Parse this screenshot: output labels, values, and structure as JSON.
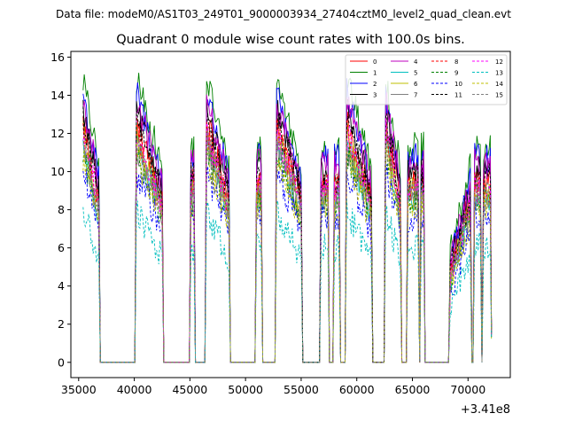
{
  "figure": {
    "suptitle": "Data file: modeM0/AS1T03_249T01_9000003934_27404cztM0_level2_quad_clean.evt"
  },
  "chart_data": {
    "type": "line",
    "title": "Quadrant 0 module wise count rates with 100.0s bins.",
    "xlabel": "",
    "ylabel": "",
    "x_offset_label": "+3.41e8",
    "xlim": [
      34300,
      73800
    ],
    "ylim": [
      -0.8,
      16.3
    ],
    "x_ticks": [
      35000,
      40000,
      45000,
      50000,
      55000,
      60000,
      65000,
      70000
    ],
    "x_tick_labels": [
      "35000",
      "40000",
      "45000",
      "50000",
      "55000",
      "60000",
      "65000",
      "70000"
    ],
    "y_ticks": [
      0,
      2,
      4,
      6,
      8,
      10,
      12,
      14,
      16
    ],
    "y_tick_labels": [
      "0",
      "2",
      "4",
      "6",
      "8",
      "10",
      "12",
      "14",
      "16"
    ],
    "grid": false,
    "legend_location": "upper right",
    "legend_columns": 4,
    "active_segments": [
      {
        "start": 35400,
        "end": 36800
      },
      {
        "start": 40200,
        "end": 42500
      },
      {
        "start": 45100,
        "end": 45350
      },
      {
        "start": 46500,
        "end": 48500
      },
      {
        "start": 51000,
        "end": 51400
      },
      {
        "start": 52800,
        "end": 55000
      },
      {
        "start": 56800,
        "end": 57400
      },
      {
        "start": 58000,
        "end": 58400
      },
      {
        "start": 59100,
        "end": 61300
      },
      {
        "start": 62600,
        "end": 63900
      },
      {
        "start": 64600,
        "end": 65500
      },
      {
        "start": 65800,
        "end": 66000
      },
      {
        "start": 68400,
        "end": 70200
      },
      {
        "start": 70600,
        "end": 71100
      },
      {
        "start": 71400,
        "end": 72100
      }
    ],
    "series": [
      {
        "name": "0",
        "color": "#ff0000",
        "dash": "solid",
        "level": 9.5
      },
      {
        "name": "1",
        "color": "#008000",
        "dash": "solid",
        "level": 11.3
      },
      {
        "name": "2",
        "color": "#0000ff",
        "dash": "solid",
        "level": 10.7
      },
      {
        "name": "3",
        "color": "#000000",
        "dash": "solid",
        "level": 10.0
      },
      {
        "name": "4",
        "color": "#bf00bf",
        "dash": "solid",
        "level": 10.4
      },
      {
        "name": "5",
        "color": "#00bfbf",
        "dash": "solid",
        "level": 8.7
      },
      {
        "name": "6",
        "color": "#bfbf00",
        "dash": "solid",
        "level": 9.0
      },
      {
        "name": "7",
        "color": "#808080",
        "dash": "solid",
        "level": 8.6
      },
      {
        "name": "8",
        "color": "#ff0000",
        "dash": "dashed",
        "level": 9.2
      },
      {
        "name": "9",
        "color": "#008000",
        "dash": "dashed",
        "level": 8.4
      },
      {
        "name": "10",
        "color": "#0000ff",
        "dash": "dashed",
        "level": 7.6
      },
      {
        "name": "11",
        "color": "#000000",
        "dash": "dashed",
        "level": 9.7
      },
      {
        "name": "12",
        "color": "#ff00ff",
        "dash": "dashed",
        "level": 9.1
      },
      {
        "name": "13",
        "color": "#00bfbf",
        "dash": "dashed",
        "level": 6.0
      },
      {
        "name": "14",
        "color": "#bfbf00",
        "dash": "dashed",
        "level": 8.2
      },
      {
        "name": "15",
        "color": "#808080",
        "dash": "dashed",
        "level": 8.8
      }
    ]
  }
}
